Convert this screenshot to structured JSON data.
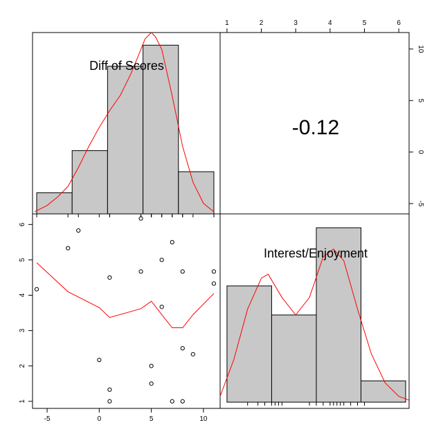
{
  "colors": {
    "bar_fill": "#c8c8c8",
    "curve": "#ff0000",
    "frame": "#000000"
  },
  "labels": {
    "var1": "Diff of Scores",
    "var2": "Interest/Enjoyment",
    "correlation": "-0.12"
  },
  "chart_data": [
    {
      "type": "bar",
      "panel": "histogram-diff-of-scores",
      "bins": [
        {
          "from": -6,
          "to": -2.6,
          "count": 1
        },
        {
          "from": -2.6,
          "to": 0.8,
          "count": 3
        },
        {
          "from": 0.8,
          "to": 4.2,
          "count": 7
        },
        {
          "from": 4.2,
          "to": 7.6,
          "count": 8
        },
        {
          "from": 7.6,
          "to": 11,
          "count": 2
        }
      ],
      "density_curve": [
        [
          -6.2,
          0.1
        ],
        [
          -5,
          0.4
        ],
        [
          -4,
          0.8
        ],
        [
          -3,
          1.3
        ],
        [
          -2,
          2.2
        ],
        [
          -1,
          3.2
        ],
        [
          0,
          4.1
        ],
        [
          1,
          4.9
        ],
        [
          2,
          5.6
        ],
        [
          3,
          6.6
        ],
        [
          4,
          7.8
        ],
        [
          4.4,
          8.3
        ],
        [
          5,
          8.6
        ],
        [
          5.4,
          8.4
        ],
        [
          6,
          7.8
        ],
        [
          7,
          5.6
        ],
        [
          8,
          3.2
        ],
        [
          9,
          1.5
        ],
        [
          10,
          0.5
        ],
        [
          11,
          0.1
        ]
      ],
      "rug": [
        -6,
        -3,
        -2,
        0,
        1,
        1,
        4,
        4,
        5,
        5,
        5,
        6,
        6,
        7,
        7,
        8,
        8,
        9,
        11,
        11
      ]
    },
    {
      "type": "scatter",
      "panel": "scatter-interest-vs-diff",
      "xlim": [
        -6.4,
        11.6
      ],
      "ylim": [
        0.8,
        6.3
      ],
      "xticks": [
        -5,
        0,
        5,
        10
      ],
      "yticks": [
        1,
        2,
        3,
        4,
        5,
        6
      ],
      "points": [
        [
          -6,
          4.17
        ],
        [
          -3,
          5.33
        ],
        [
          -2,
          5.83
        ],
        [
          0,
          2.17
        ],
        [
          1,
          4.5
        ],
        [
          1,
          1.33
        ],
        [
          1,
          1.0
        ],
        [
          4,
          6.17
        ],
        [
          4,
          4.67
        ],
        [
          5,
          2.0
        ],
        [
          5,
          1.5
        ],
        [
          6,
          5.0
        ],
        [
          6,
          3.67
        ],
        [
          7,
          5.5
        ],
        [
          7,
          1.0
        ],
        [
          8,
          4.67
        ],
        [
          8,
          2.5
        ],
        [
          8,
          1.0
        ],
        [
          9,
          2.33
        ],
        [
          11,
          4.67
        ],
        [
          11,
          4.33
        ]
      ],
      "smooth_line": [
        [
          -6,
          4.92
        ],
        [
          -3,
          4.1
        ],
        [
          0,
          3.65
        ],
        [
          1,
          3.37
        ],
        [
          4,
          3.62
        ],
        [
          5,
          3.83
        ],
        [
          6,
          3.45
        ],
        [
          7,
          3.08
        ],
        [
          8,
          3.08
        ],
        [
          9,
          3.45
        ],
        [
          11,
          4.05
        ]
      ]
    },
    {
      "type": "bar",
      "panel": "histogram-interest-enjoyment",
      "xlim": [
        0.8,
        6.3
      ],
      "ylim": [
        -6,
        11.6
      ],
      "xticks": [
        1,
        2,
        3,
        4,
        5,
        6
      ],
      "yticks": [
        -5,
        0,
        5,
        10
      ],
      "bins": [
        {
          "from": 1.0,
          "to": 2.3,
          "count": 6
        },
        {
          "from": 2.3,
          "to": 3.6,
          "count": 4.5
        },
        {
          "from": 3.6,
          "to": 4.9,
          "count": 9
        },
        {
          "from": 4.9,
          "to": 6.2,
          "count": 1.1
        }
      ],
      "density_curve": [
        [
          0.8,
          0.3
        ],
        [
          1.2,
          2.2
        ],
        [
          1.6,
          4.8
        ],
        [
          2.0,
          6.4
        ],
        [
          2.2,
          6.6
        ],
        [
          2.6,
          5.4
        ],
        [
          3.0,
          4.5
        ],
        [
          3.4,
          5.4
        ],
        [
          3.8,
          7.5
        ],
        [
          4.1,
          7.9
        ],
        [
          4.4,
          7.3
        ],
        [
          4.8,
          4.8
        ],
        [
          5.2,
          2.5
        ],
        [
          5.6,
          1.0
        ],
        [
          6.0,
          0.3
        ],
        [
          6.3,
          0.1
        ]
      ],
      "rug": [
        1.6,
        1.9,
        2.1,
        2.3,
        2.4,
        2.5,
        2.6,
        3.4,
        3.6,
        3.8,
        4.0,
        4.1,
        4.2,
        4.3,
        4.4,
        4.6,
        4.8,
        5.0
      ]
    }
  ]
}
